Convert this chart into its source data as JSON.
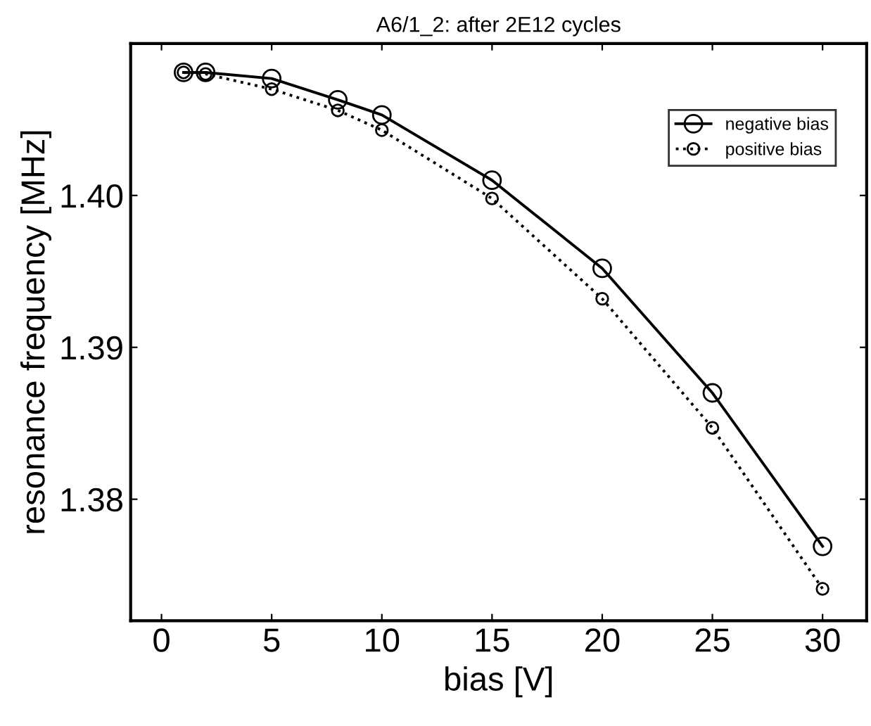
{
  "chart_data": {
    "type": "line",
    "title": "A6/1_2: after 2E12 cycles",
    "xlabel": "bias [V]",
    "ylabel": "resonance frequency [MHz]",
    "x": [
      1,
      2,
      5,
      8,
      10,
      15,
      20,
      25,
      30
    ],
    "series": [
      {
        "name": "negative bias",
        "color": "#000000",
        "line_style": "solid",
        "values": [
          1.4081,
          1.4081,
          1.4077,
          1.4063,
          1.4053,
          1.401,
          1.3952,
          1.387,
          1.3769
        ]
      },
      {
        "name": "positive bias",
        "color": "#000000",
        "line_style": "dotted",
        "values": [
          1.4081,
          1.408,
          1.407,
          1.4056,
          1.4043,
          1.3998,
          1.3932,
          1.3847,
          1.3741
        ]
      }
    ],
    "marker": "circle",
    "xlim": [
      -1.4,
      32
    ],
    "ylim": [
      1.372,
      1.41
    ],
    "xticks": [
      0,
      5,
      10,
      15,
      20,
      25,
      30
    ],
    "yticks": [
      {
        "value": 1.38,
        "label": "1.38"
      },
      {
        "value": 1.39,
        "label": "1.39"
      },
      {
        "value": 1.4,
        "label": "1.40"
      }
    ],
    "grid": false,
    "legend": "top right"
  }
}
